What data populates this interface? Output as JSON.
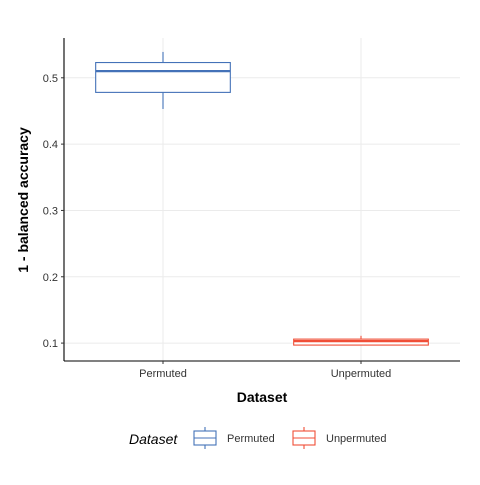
{
  "chart_data": {
    "type": "box",
    "xlabel": "Dataset",
    "ylabel": "1 - balanced accuracy",
    "categories": [
      "Permuted",
      "Unpermuted"
    ],
    "ylim": [
      0.073,
      0.56
    ],
    "yticks": [
      0.1,
      0.2,
      0.3,
      0.4,
      0.5
    ],
    "ytick_labels": [
      "0.1",
      "0.2",
      "0.3",
      "0.4",
      "0.5"
    ],
    "grid": true,
    "series": [
      {
        "name": "Permuted",
        "color": "#4472B8",
        "min": 0.453,
        "q1": 0.478,
        "median": 0.51,
        "q3": 0.523,
        "max": 0.539
      },
      {
        "name": "Unpermuted",
        "color": "#F04E37",
        "min": 0.097,
        "q1": 0.097,
        "median": 0.103,
        "q3": 0.106,
        "max": 0.111
      }
    ],
    "legend": {
      "title": "Dataset",
      "position": "bottom",
      "entries": [
        "Permuted",
        "Unpermuted"
      ]
    }
  }
}
